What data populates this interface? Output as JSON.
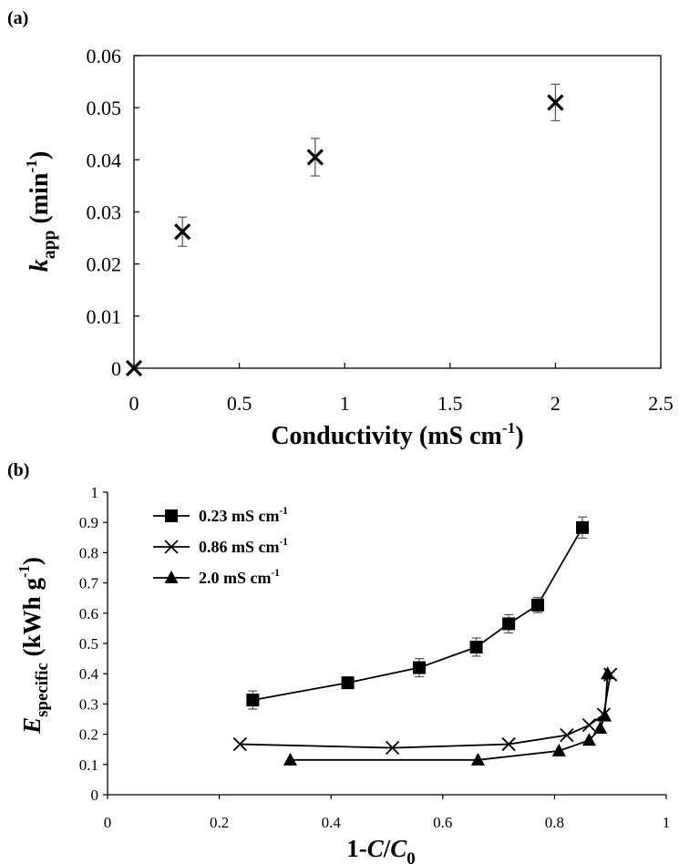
{
  "chart_data": [
    {
      "panel": "(a)",
      "type": "scatter",
      "xlabel": "Conductivity (mS cm",
      "xlabel_sup": "-1",
      "xlabel_end": ")",
      "ylabel_main": "k",
      "ylabel_sub": "app",
      "ylabel_rest": " (min",
      "ylabel_sup": "-1",
      "ylabel_end": ")",
      "xlim": [
        0,
        2.5
      ],
      "ylim": [
        0,
        0.06
      ],
      "xticks": [
        "0",
        "0.5",
        "1",
        "1.5",
        "2",
        "2.5"
      ],
      "yticks": [
        "0",
        "0.01",
        "0.02",
        "0.03",
        "0.04",
        "0.05",
        "0.06"
      ],
      "grid": false,
      "marker": "x",
      "points": [
        {
          "x": 0,
          "y": 0,
          "err": 0
        },
        {
          "x": 0.23,
          "y": 0.0262,
          "err": 0.0028
        },
        {
          "x": 0.86,
          "y": 0.0405,
          "err": 0.0036
        },
        {
          "x": 2.0,
          "y": 0.051,
          "err": 0.0035
        }
      ]
    },
    {
      "panel": "(b)",
      "type": "line",
      "xlabel_pre": "1-",
      "xlabel_c": "C",
      "xlabel_slash": "/",
      "xlabel_c0": "C",
      "xlabel_sub": "0",
      "ylabel_main": "E",
      "ylabel_sub": "specific",
      "ylabel_rest": " (kWh g",
      "ylabel_sup": "-1",
      "ylabel_end": ")",
      "xlim": [
        0,
        1
      ],
      "ylim": [
        0,
        1
      ],
      "xticks": [
        "0",
        "0.2",
        "0.4",
        "0.6",
        "0.8",
        "1"
      ],
      "yticks": [
        "0",
        "0.1",
        "0.2",
        "0.3",
        "0.4",
        "0.5",
        "0.6",
        "0.7",
        "0.8",
        "0.9",
        "1"
      ],
      "grid": false,
      "legend_position": "top-left",
      "series": [
        {
          "name": "0.23 mS cm",
          "name_sup": "-1",
          "marker": "square",
          "points": [
            {
              "x": 0.26,
              "y": 0.313,
              "err": 0.03
            },
            {
              "x": 0.43,
              "y": 0.37,
              "err": 0
            },
            {
              "x": 0.558,
              "y": 0.42,
              "err": 0.03
            },
            {
              "x": 0.66,
              "y": 0.488,
              "err": 0.03
            },
            {
              "x": 0.718,
              "y": 0.565,
              "err": 0.03
            },
            {
              "x": 0.77,
              "y": 0.627,
              "err": 0.025
            },
            {
              "x": 0.85,
              "y": 0.883,
              "err": 0.035
            }
          ]
        },
        {
          "name": "0.86 mS cm",
          "name_sup": "-1",
          "marker": "x",
          "points": [
            {
              "x": 0.237,
              "y": 0.167
            },
            {
              "x": 0.51,
              "y": 0.155
            },
            {
              "x": 0.718,
              "y": 0.167
            },
            {
              "x": 0.822,
              "y": 0.197
            },
            {
              "x": 0.862,
              "y": 0.23
            },
            {
              "x": 0.888,
              "y": 0.265
            },
            {
              "x": 0.9,
              "y": 0.397
            }
          ]
        },
        {
          "name": "2.0 mS cm",
          "name_sup": "-1",
          "marker": "triangle",
          "points": [
            {
              "x": 0.327,
              "y": 0.115
            },
            {
              "x": 0.663,
              "y": 0.115
            },
            {
              "x": 0.808,
              "y": 0.145
            },
            {
              "x": 0.862,
              "y": 0.18
            },
            {
              "x": 0.882,
              "y": 0.22
            },
            {
              "x": 0.89,
              "y": 0.26
            },
            {
              "x": 0.895,
              "y": 0.4
            }
          ]
        }
      ]
    }
  ]
}
